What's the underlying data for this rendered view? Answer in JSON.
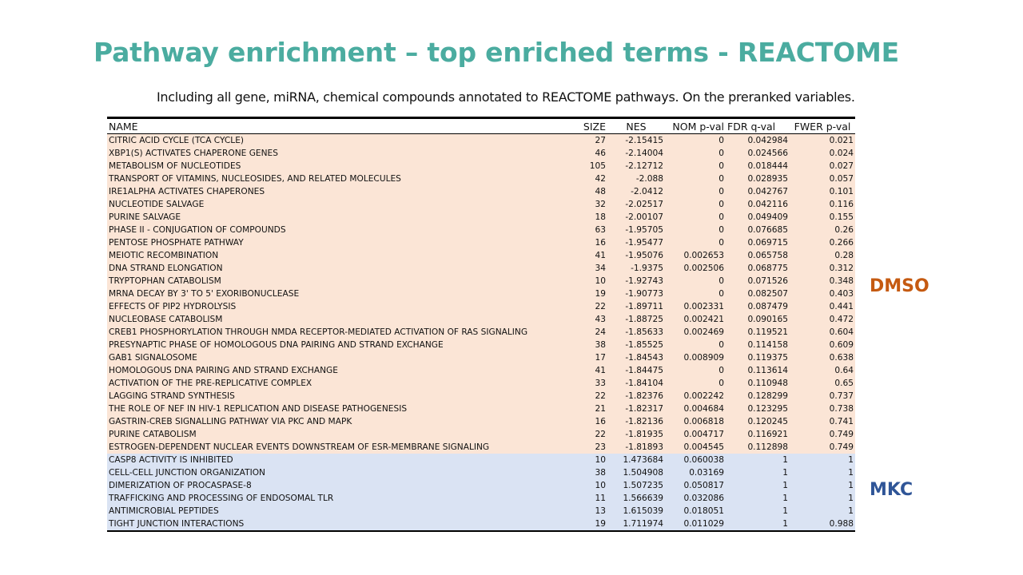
{
  "title": "Pathway enrichment – top enriched terms - REACTOME",
  "subtitle": "Including all gene, miRNA, chemical compounds annotated to REACTOME pathways. On the preranked variables.",
  "colors": {
    "title": "#4BACA0",
    "dmso_label": "#C55A11",
    "mkc_label": "#2F5597",
    "dmso_rows": "#FBE5D6",
    "mkc_rows": "#DAE3F3"
  },
  "labels": {
    "dmso": "DMSO",
    "mkc": "MKC"
  },
  "table": {
    "headers": {
      "name": "NAME",
      "size": "SIZE",
      "nes": "NES",
      "nom": "NOM p-val",
      "fdr": "FDR q-val",
      "fwer": "FWER p-val"
    },
    "rows": [
      {
        "group": "dmso",
        "name": "CITRIC ACID CYCLE (TCA CYCLE)",
        "size": "27",
        "nes": "-2.15415",
        "nom": "0",
        "fdr": "0.042984",
        "fwer": "0.021"
      },
      {
        "group": "dmso",
        "name": "XBP1(S) ACTIVATES CHAPERONE GENES",
        "size": "46",
        "nes": "-2.14004",
        "nom": "0",
        "fdr": "0.024566",
        "fwer": "0.024"
      },
      {
        "group": "dmso",
        "name": "METABOLISM OF NUCLEOTIDES",
        "size": "105",
        "nes": "-2.12712",
        "nom": "0",
        "fdr": "0.018444",
        "fwer": "0.027"
      },
      {
        "group": "dmso",
        "name": "TRANSPORT OF VITAMINS, NUCLEOSIDES, AND RELATED MOLECULES",
        "size": "42",
        "nes": "-2.088",
        "nom": "0",
        "fdr": "0.028935",
        "fwer": "0.057"
      },
      {
        "group": "dmso",
        "name": "IRE1ALPHA ACTIVATES CHAPERONES",
        "size": "48",
        "nes": "-2.0412",
        "nom": "0",
        "fdr": "0.042767",
        "fwer": "0.101"
      },
      {
        "group": "dmso",
        "name": "NUCLEOTIDE SALVAGE",
        "size": "32",
        "nes": "-2.02517",
        "nom": "0",
        "fdr": "0.042116",
        "fwer": "0.116"
      },
      {
        "group": "dmso",
        "name": "PURINE SALVAGE",
        "size": "18",
        "nes": "-2.00107",
        "nom": "0",
        "fdr": "0.049409",
        "fwer": "0.155"
      },
      {
        "group": "dmso",
        "name": "PHASE II - CONJUGATION OF COMPOUNDS",
        "size": "63",
        "nes": "-1.95705",
        "nom": "0",
        "fdr": "0.076685",
        "fwer": "0.26"
      },
      {
        "group": "dmso",
        "name": "PENTOSE PHOSPHATE PATHWAY",
        "size": "16",
        "nes": "-1.95477",
        "nom": "0",
        "fdr": "0.069715",
        "fwer": "0.266"
      },
      {
        "group": "dmso",
        "name": "MEIOTIC RECOMBINATION",
        "size": "41",
        "nes": "-1.95076",
        "nom": "0.002653",
        "fdr": "0.065758",
        "fwer": "0.28"
      },
      {
        "group": "dmso",
        "name": "DNA STRAND ELONGATION",
        "size": "34",
        "nes": "-1.9375",
        "nom": "0.002506",
        "fdr": "0.068775",
        "fwer": "0.312"
      },
      {
        "group": "dmso",
        "name": "TRYPTOPHAN CATABOLISM",
        "size": "10",
        "nes": "-1.92743",
        "nom": "0",
        "fdr": "0.071526",
        "fwer": "0.348"
      },
      {
        "group": "dmso",
        "name": "MRNA DECAY BY 3' TO 5' EXORIBONUCLEASE",
        "size": "19",
        "nes": "-1.90773",
        "nom": "0",
        "fdr": "0.082507",
        "fwer": "0.403"
      },
      {
        "group": "dmso",
        "name": "EFFECTS OF PIP2 HYDROLYSIS",
        "size": "22",
        "nes": "-1.89711",
        "nom": "0.002331",
        "fdr": "0.087479",
        "fwer": "0.441"
      },
      {
        "group": "dmso",
        "name": "NUCLEOBASE CATABOLISM",
        "size": "43",
        "nes": "-1.88725",
        "nom": "0.002421",
        "fdr": "0.090165",
        "fwer": "0.472"
      },
      {
        "group": "dmso",
        "name": "CREB1 PHOSPHORYLATION THROUGH NMDA RECEPTOR-MEDIATED ACTIVATION OF RAS SIGNALING",
        "size": "24",
        "nes": "-1.85633",
        "nom": "0.002469",
        "fdr": "0.119521",
        "fwer": "0.604"
      },
      {
        "group": "dmso",
        "name": "PRESYNAPTIC PHASE OF HOMOLOGOUS DNA PAIRING AND STRAND EXCHANGE",
        "size": "38",
        "nes": "-1.85525",
        "nom": "0",
        "fdr": "0.114158",
        "fwer": "0.609"
      },
      {
        "group": "dmso",
        "name": "GAB1 SIGNALOSOME",
        "size": "17",
        "nes": "-1.84543",
        "nom": "0.008909",
        "fdr": "0.119375",
        "fwer": "0.638"
      },
      {
        "group": "dmso",
        "name": "HOMOLOGOUS DNA PAIRING AND STRAND EXCHANGE",
        "size": "41",
        "nes": "-1.84475",
        "nom": "0",
        "fdr": "0.113614",
        "fwer": "0.64"
      },
      {
        "group": "dmso",
        "name": "ACTIVATION OF THE PRE-REPLICATIVE COMPLEX",
        "size": "33",
        "nes": "-1.84104",
        "nom": "0",
        "fdr": "0.110948",
        "fwer": "0.65"
      },
      {
        "group": "dmso",
        "name": "LAGGING STRAND SYNTHESIS",
        "size": "22",
        "nes": "-1.82376",
        "nom": "0.002242",
        "fdr": "0.128299",
        "fwer": "0.737"
      },
      {
        "group": "dmso",
        "name": "THE ROLE OF NEF IN HIV-1 REPLICATION AND DISEASE PATHOGENESIS",
        "size": "21",
        "nes": "-1.82317",
        "nom": "0.004684",
        "fdr": "0.123295",
        "fwer": "0.738"
      },
      {
        "group": "dmso",
        "name": "GASTRIN-CREB SIGNALLING PATHWAY VIA PKC AND MAPK",
        "size": "16",
        "nes": "-1.82136",
        "nom": "0.006818",
        "fdr": "0.120245",
        "fwer": "0.741"
      },
      {
        "group": "dmso",
        "name": "PURINE CATABOLISM",
        "size": "22",
        "nes": "-1.81935",
        "nom": "0.004717",
        "fdr": "0.116921",
        "fwer": "0.749"
      },
      {
        "group": "dmso",
        "name": "ESTROGEN-DEPENDENT NUCLEAR EVENTS DOWNSTREAM OF ESR-MEMBRANE SIGNALING",
        "size": "23",
        "nes": "-1.81893",
        "nom": "0.004545",
        "fdr": "0.112898",
        "fwer": "0.749"
      },
      {
        "group": "mkc",
        "name": "CASP8 ACTIVITY IS INHIBITED",
        "size": "10",
        "nes": "1.473684",
        "nom": "0.060038",
        "fdr": "1",
        "fwer": "1"
      },
      {
        "group": "mkc",
        "name": "CELL-CELL JUNCTION ORGANIZATION",
        "size": "38",
        "nes": "1.504908",
        "nom": "0.03169",
        "fdr": "1",
        "fwer": "1"
      },
      {
        "group": "mkc",
        "name": "DIMERIZATION OF PROCASPASE-8",
        "size": "10",
        "nes": "1.507235",
        "nom": "0.050817",
        "fdr": "1",
        "fwer": "1"
      },
      {
        "group": "mkc",
        "name": "TRAFFICKING AND PROCESSING OF ENDOSOMAL TLR",
        "size": "11",
        "nes": "1.566639",
        "nom": "0.032086",
        "fdr": "1",
        "fwer": "1"
      },
      {
        "group": "mkc",
        "name": "ANTIMICROBIAL PEPTIDES",
        "size": "13",
        "nes": "1.615039",
        "nom": "0.018051",
        "fdr": "1",
        "fwer": "1"
      },
      {
        "group": "mkc",
        "name": "TIGHT JUNCTION INTERACTIONS",
        "size": "19",
        "nes": "1.711974",
        "nom": "0.011029",
        "fdr": "1",
        "fwer": "0.988"
      }
    ]
  }
}
